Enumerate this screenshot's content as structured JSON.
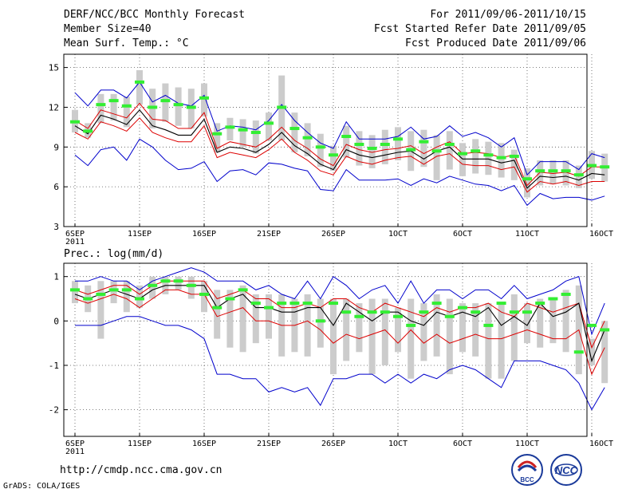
{
  "header": {
    "title": "DERF/NCC/BCC Monthly Forecast",
    "member_size": "Member Size=40",
    "variable": "Mean Surf. Temp.: °C",
    "period": "For 2011/09/06-2011/10/15",
    "started": "Fcst Started Refer Date 2011/09/05",
    "produced": "Fcst Produced Date 2011/09/06"
  },
  "footer": {
    "url": "http://cmdp.ncc.cma.gov.cn",
    "grads": "GrADS: COLA/IGES",
    "logo1_text": "BCC",
    "logo2_text": "NCC"
  },
  "colors": {
    "envelope": "#0000cc",
    "spread": "#dd0000",
    "mean": "#000000",
    "member": "#33ee33",
    "bar": "#cccccc",
    "grid": "#555555"
  },
  "chart_data": [
    {
      "type": "line",
      "title": "Mean Surf. Temp.: °C",
      "ylim": [
        3,
        16
      ],
      "yticks": [
        3,
        6,
        9,
        12,
        15
      ],
      "xticks": [
        {
          "day": 1,
          "label": "6SEP",
          "sub": "2011"
        },
        {
          "day": 6,
          "label": "11SEP"
        },
        {
          "day": 11,
          "label": "16SEP"
        },
        {
          "day": 16,
          "label": "21SEP"
        },
        {
          "day": 21,
          "label": "26SEP"
        },
        {
          "day": 26,
          "label": "1OCT"
        },
        {
          "day": 31,
          "label": "6OCT"
        },
        {
          "day": 36,
          "label": "11OCT"
        },
        {
          "day": 41,
          "label": "16OCT"
        }
      ],
      "series": [
        {
          "name": "max",
          "values": [
            13.1,
            12.1,
            13.3,
            13.3,
            12.7,
            13.9,
            12.4,
            12.9,
            12.3,
            12.1,
            12.9,
            10.2,
            10.6,
            10.5,
            10.3,
            11.0,
            12.2,
            11.0,
            10.1,
            9.3,
            8.9,
            10.9,
            9.6,
            9.6,
            9.6,
            9.8,
            10.5,
            9.6,
            9.8,
            10.6,
            9.8,
            10.1,
            9.7,
            9.0,
            9.7,
            6.9,
            7.9,
            7.9,
            7.9,
            7.3,
            8.5,
            8.2
          ]
        },
        {
          "name": "upper",
          "values": [
            11.0,
            10.4,
            11.8,
            11.5,
            11.2,
            12.3,
            11.1,
            11.0,
            10.4,
            10.4,
            11.6,
            8.9,
            9.4,
            9.2,
            9.0,
            9.6,
            10.5,
            9.5,
            8.9,
            8.1,
            7.6,
            9.2,
            8.8,
            8.6,
            8.8,
            8.9,
            9.1,
            8.5,
            9.0,
            9.4,
            8.5,
            8.6,
            8.5,
            8.2,
            8.4,
            6.1,
            7.1,
            7.0,
            7.1,
            6.8,
            7.5,
            7.5
          ]
        },
        {
          "name": "mean",
          "values": [
            10.6,
            10.0,
            11.4,
            11.1,
            10.7,
            11.8,
            10.6,
            10.3,
            9.9,
            9.9,
            11.1,
            8.6,
            9.0,
            8.9,
            8.6,
            9.2,
            10.1,
            9.1,
            8.5,
            7.7,
            7.3,
            8.8,
            8.4,
            8.2,
            8.4,
            8.6,
            8.7,
            8.1,
            8.7,
            9.0,
            8.1,
            8.1,
            8.1,
            7.8,
            8.0,
            5.9,
            6.8,
            6.7,
            6.8,
            6.5,
            7.0,
            6.9
          ]
        },
        {
          "name": "lower",
          "values": [
            10.1,
            9.6,
            10.9,
            10.6,
            10.2,
            11.2,
            10.1,
            9.7,
            9.4,
            9.4,
            10.6,
            8.2,
            8.6,
            8.4,
            8.2,
            8.8,
            9.6,
            8.6,
            8.0,
            7.2,
            6.9,
            8.3,
            7.9,
            7.7,
            8.0,
            8.2,
            8.3,
            7.7,
            8.3,
            8.5,
            7.7,
            7.6,
            7.6,
            7.3,
            7.5,
            5.6,
            6.4,
            6.2,
            6.4,
            6.1,
            6.4,
            6.4
          ]
        },
        {
          "name": "min",
          "values": [
            8.4,
            7.6,
            8.8,
            9.0,
            8.0,
            9.6,
            9.0,
            8.0,
            7.3,
            7.4,
            7.9,
            6.4,
            7.2,
            7.3,
            6.9,
            7.8,
            7.7,
            7.4,
            7.2,
            5.8,
            5.7,
            7.3,
            6.5,
            6.5,
            6.5,
            6.6,
            6.1,
            6.6,
            6.3,
            6.8,
            6.5,
            6.2,
            6.1,
            5.7,
            6.1,
            4.6,
            5.5,
            5.1,
            5.2,
            5.2,
            5.0,
            5.3
          ]
        },
        {
          "name": "member",
          "values": [
            10.9,
            10.2,
            12.2,
            12.5,
            12.1,
            13.9,
            12.0,
            12.5,
            12.2,
            12.0,
            12.7,
            10.0,
            10.5,
            10.3,
            10.1,
            10.8,
            12.0,
            10.4,
            9.7,
            9.0,
            8.4,
            9.8,
            9.2,
            8.9,
            9.2,
            9.6,
            8.8,
            9.4,
            8.7,
            9.2,
            8.5,
            8.7,
            8.4,
            8.2,
            8.3,
            6.6,
            7.2,
            7.2,
            7.2,
            6.9,
            7.6,
            7.5
          ]
        },
        {
          "name": "bar_low",
          "values": [
            10.1,
            9.7,
            10.8,
            11.0,
            10.5,
            12.2,
            10.4,
            10.9,
            10.6,
            10.4,
            11.3,
            8.6,
            9.5,
            9.0,
            8.5,
            9.5,
            9.5,
            8.6,
            8.3,
            7.5,
            7.2,
            8.2,
            7.6,
            7.4,
            7.7,
            8.0,
            7.2,
            7.5,
            6.5,
            7.3,
            6.8,
            7.0,
            6.9,
            6.7,
            6.5,
            5.2,
            6.1,
            6.2,
            6.1,
            5.9,
            6.6,
            6.4
          ]
        },
        {
          "name": "bar_high",
          "values": [
            11.8,
            10.8,
            13.0,
            13.0,
            12.8,
            14.8,
            13.4,
            13.8,
            13.5,
            13.4,
            13.8,
            10.8,
            11.2,
            11.1,
            11.0,
            11.6,
            14.4,
            11.6,
            10.8,
            10.0,
            9.1,
            10.6,
            10.2,
            9.9,
            10.3,
            10.5,
            10.2,
            10.3,
            9.9,
            10.2,
            9.3,
            9.6,
            9.4,
            9.3,
            8.8,
            7.4,
            8.0,
            8.0,
            8.0,
            7.6,
            8.7,
            8.5
          ]
        }
      ]
    },
    {
      "type": "line",
      "title": "Prec.: log(mm/d)",
      "ylim": [
        -2.6,
        1.3
      ],
      "yticks": [
        -2,
        -1,
        0,
        1
      ],
      "xticks": [
        {
          "day": 1,
          "label": "6SEP",
          "sub": "2011"
        },
        {
          "day": 6,
          "label": "11SEP"
        },
        {
          "day": 11,
          "label": "16SEP"
        },
        {
          "day": 16,
          "label": "21SEP"
        },
        {
          "day": 21,
          "label": "26SEP"
        },
        {
          "day": 26,
          "label": "1OCT"
        },
        {
          "day": 31,
          "label": "6OCT"
        },
        {
          "day": 36,
          "label": "11OCT"
        },
        {
          "day": 41,
          "label": "16OCT"
        }
      ],
      "series": [
        {
          "name": "max",
          "values": [
            0.9,
            0.9,
            1.0,
            0.9,
            0.9,
            0.7,
            0.9,
            1.0,
            1.1,
            1.2,
            1.1,
            0.9,
            0.9,
            0.9,
            0.7,
            0.8,
            0.6,
            0.5,
            0.9,
            0.5,
            1.0,
            0.8,
            0.5,
            0.7,
            0.8,
            0.4,
            0.9,
            0.4,
            0.7,
            0.7,
            0.5,
            0.7,
            0.7,
            0.5,
            0.8,
            0.5,
            0.6,
            0.7,
            0.9,
            1.0,
            -0.3,
            0.4
          ]
        },
        {
          "name": "upper",
          "values": [
            0.7,
            0.6,
            0.7,
            0.8,
            0.8,
            0.6,
            0.8,
            0.9,
            0.9,
            0.9,
            0.9,
            0.5,
            0.6,
            0.7,
            0.5,
            0.5,
            0.3,
            0.3,
            0.4,
            0.3,
            0.5,
            0.5,
            0.3,
            0.2,
            0.4,
            0.3,
            0.2,
            0.1,
            0.3,
            0.2,
            0.3,
            0.3,
            0.4,
            0.2,
            0.1,
            0.4,
            0.3,
            0.2,
            0.3,
            0.4,
            -0.6,
            0.0
          ]
        },
        {
          "name": "mean",
          "values": [
            0.6,
            0.5,
            0.6,
            0.7,
            0.6,
            0.5,
            0.7,
            0.8,
            0.8,
            0.8,
            0.8,
            0.3,
            0.5,
            0.6,
            0.3,
            0.3,
            0.2,
            0.2,
            0.3,
            0.3,
            -0.1,
            0.4,
            0.2,
            0.0,
            0.2,
            0.2,
            0.0,
            -0.1,
            0.2,
            0.1,
            0.2,
            0.1,
            0.3,
            -0.1,
            0.1,
            -0.1,
            0.4,
            0.1,
            0.2,
            0.4,
            -0.9,
            -0.2
          ]
        },
        {
          "name": "lower",
          "values": [
            0.5,
            0.4,
            0.5,
            0.6,
            0.5,
            0.3,
            0.5,
            0.7,
            0.7,
            0.6,
            0.6,
            0.1,
            0.2,
            0.3,
            0.0,
            0.0,
            -0.1,
            -0.1,
            0.0,
            -0.2,
            -0.5,
            -0.3,
            -0.4,
            -0.3,
            -0.2,
            -0.5,
            -0.2,
            -0.5,
            -0.3,
            -0.5,
            -0.4,
            -0.3,
            -0.4,
            -0.4,
            -0.3,
            -0.2,
            -0.3,
            -0.4,
            -0.4,
            -0.2,
            -1.2,
            -0.6
          ]
        },
        {
          "name": "min",
          "values": [
            -0.1,
            -0.1,
            -0.1,
            0.0,
            0.1,
            0.1,
            0.0,
            -0.1,
            -0.1,
            -0.2,
            -0.4,
            -1.2,
            -1.2,
            -1.3,
            -1.3,
            -1.6,
            -1.5,
            -1.6,
            -1.5,
            -1.9,
            -1.3,
            -1.3,
            -1.2,
            -1.2,
            -1.4,
            -1.2,
            -1.4,
            -1.2,
            -1.3,
            -1.1,
            -1.0,
            -1.1,
            -1.3,
            -1.5,
            -0.9,
            -0.9,
            -0.9,
            -1.0,
            -1.1,
            -1.4,
            -2.0,
            -1.5
          ]
        },
        {
          "name": "member",
          "values": [
            0.7,
            0.5,
            0.6,
            0.7,
            0.7,
            0.5,
            0.8,
            0.9,
            0.9,
            0.8,
            0.6,
            0.3,
            0.5,
            0.7,
            0.4,
            0.3,
            0.4,
            0.4,
            0.4,
            0.0,
            0.4,
            0.2,
            0.1,
            0.2,
            0.2,
            0.1,
            -0.1,
            0.2,
            0.4,
            0.1,
            0.3,
            0.2,
            -0.1,
            0.4,
            0.2,
            0.2,
            0.4,
            0.5,
            0.6,
            -0.7,
            -0.1,
            -0.2
          ]
        },
        {
          "name": "bar_low",
          "values": [
            0.4,
            0.2,
            -0.4,
            0.4,
            0.2,
            0.3,
            0.5,
            0.6,
            0.7,
            0.5,
            0.2,
            -0.4,
            -0.6,
            -0.7,
            -0.5,
            -0.4,
            -0.8,
            -0.7,
            -0.8,
            -0.6,
            -1.2,
            -0.9,
            -0.7,
            -1.2,
            -1.0,
            -0.7,
            -1.3,
            -0.9,
            -0.8,
            -1.2,
            -0.7,
            -0.8,
            -1.3,
            -1.3,
            -0.9,
            -0.5,
            -0.6,
            -0.5,
            -0.7,
            -1.2,
            -1.0,
            -1.4
          ]
        },
        {
          "name": "bar_high",
          "values": [
            0.9,
            0.8,
            0.9,
            0.9,
            0.9,
            0.8,
            1.0,
            1.0,
            1.0,
            1.0,
            0.9,
            0.7,
            0.7,
            0.8,
            0.6,
            0.6,
            0.6,
            0.5,
            0.6,
            0.5,
            0.5,
            0.5,
            0.4,
            0.5,
            0.5,
            0.3,
            0.5,
            0.4,
            0.6,
            0.5,
            0.4,
            0.4,
            0.4,
            0.4,
            0.6,
            0.4,
            0.5,
            0.5,
            0.7,
            0.8,
            -0.4,
            0.0
          ]
        }
      ]
    }
  ]
}
